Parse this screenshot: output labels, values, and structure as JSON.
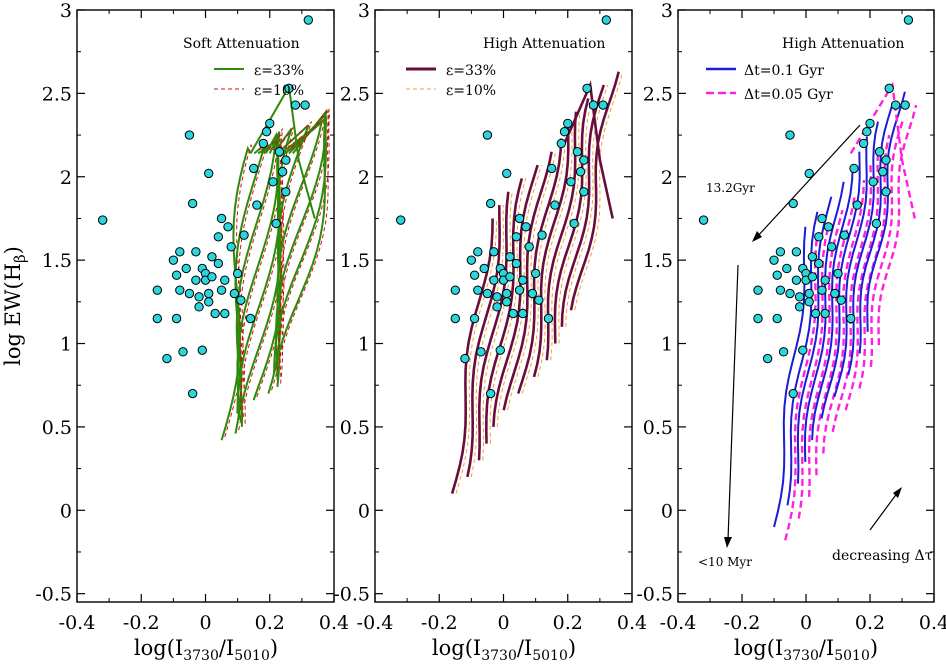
{
  "figure": {
    "ylabel_main": "log EW(H",
    "ylabel_sub": "β",
    "xlabel_main": "log(I",
    "xlabel_sub1": "3730",
    "xlabel_mid": "/I",
    "xlabel_sub2": "5010"
  },
  "colors": {
    "green": "#2d8a0a",
    "red_dash": "#cc1111",
    "maroon": "#6a0d3c",
    "orange_dash": "#f0a030",
    "blue": "#1b1bd8",
    "magenta_dash": "#ff22dd",
    "points": "#2ad6dc"
  },
  "chart_data": [
    {
      "type": "line",
      "title": "Soft Attenuation",
      "xlabel": "log(I3730/I5010)",
      "ylabel": "log EW(Hβ)",
      "xlim": [
        -0.4,
        0.4
      ],
      "ylim": [
        -0.55,
        3.0
      ],
      "xticks": [
        "-0.4",
        "-0.2",
        "0",
        "0.2",
        "0.4"
      ],
      "yticks": [
        "-0.5",
        "0",
        "0.5",
        "1",
        "1.5",
        "2",
        "2.5",
        "3"
      ],
      "legend": [
        "ε=33%",
        "ε=10%"
      ],
      "legend_position": "top-right",
      "series": [
        {
          "name": "ε=33%",
          "style": "solid",
          "color": "green",
          "track_count": 12,
          "note": "model tracks"
        },
        {
          "name": "ε=10%",
          "style": "dashed",
          "color": "red",
          "track_count": 12,
          "note": "model tracks"
        }
      ]
    },
    {
      "type": "line",
      "title": "High Attenuation",
      "xlabel": "log(I3730/I5010)",
      "ylabel": "log EW(Hβ)",
      "xlim": [
        -0.4,
        0.4
      ],
      "ylim": [
        -0.55,
        3.0
      ],
      "xticks": [
        "-0.4",
        "-0.2",
        "0",
        "0.2",
        "0.4"
      ],
      "yticks": [
        "-0.5",
        "0",
        "0.5",
        "1",
        "1.5",
        "2",
        "2.5",
        "3"
      ],
      "legend": [
        "ε=33%",
        "ε=10%"
      ],
      "legend_position": "top-right",
      "series": [
        {
          "name": "ε=33%",
          "style": "solid",
          "color": "maroon",
          "track_count": 12
        },
        {
          "name": "ε=10%",
          "style": "dashed",
          "color": "orange",
          "track_count": 12
        }
      ]
    },
    {
      "type": "line",
      "title": "High Attenuation",
      "xlabel": "log(I3730/I5010)",
      "ylabel": "log EW(Hβ)",
      "xlim": [
        -0.4,
        0.4
      ],
      "ylim": [
        -0.55,
        3.0
      ],
      "xticks": [
        "-0.4",
        "-0.2",
        "0",
        "0.2",
        "0.4"
      ],
      "yticks": [
        "-0.5",
        "0",
        "0.5",
        "1",
        "1.5",
        "2",
        "2.5",
        "3"
      ],
      "legend": [
        "Δt=0.1 Gyr",
        "Δt=0.05 Gyr"
      ],
      "legend_position": "top-right",
      "annotations": [
        "13.2Gyr",
        "<10 Myr",
        "decreasing Δτ"
      ],
      "series": [
        {
          "name": "Δt=0.1 Gyr",
          "style": "solid",
          "color": "blue",
          "track_count": 10
        },
        {
          "name": "Δt=0.05 Gyr",
          "style": "dashed",
          "color": "magenta",
          "track_count": 10
        }
      ]
    }
  ],
  "observed_points": [
    [
      -0.32,
      1.74
    ],
    [
      -0.15,
      1.32
    ],
    [
      -0.15,
      1.15
    ],
    [
      -0.12,
      0.91
    ],
    [
      -0.1,
      1.5
    ],
    [
      -0.09,
      1.41
    ],
    [
      -0.09,
      1.15
    ],
    [
      -0.08,
      1.55
    ],
    [
      -0.08,
      1.32
    ],
    [
      -0.07,
      0.95
    ],
    [
      -0.06,
      1.45
    ],
    [
      -0.05,
      1.3
    ],
    [
      -0.05,
      2.25
    ],
    [
      -0.04,
      1.84
    ],
    [
      -0.04,
      0.7
    ],
    [
      -0.03,
      1.38
    ],
    [
      -0.03,
      1.55
    ],
    [
      -0.02,
      1.22
    ],
    [
      -0.02,
      1.28
    ],
    [
      -0.01,
      1.45
    ],
    [
      -0.01,
      0.96
    ],
    [
      0.0,
      1.42
    ],
    [
      0.0,
      1.38
    ],
    [
      0.01,
      2.02
    ],
    [
      0.01,
      1.3
    ],
    [
      0.01,
      1.25
    ],
    [
      0.02,
      1.4
    ],
    [
      0.02,
      1.52
    ],
    [
      0.03,
      1.18
    ],
    [
      0.04,
      1.48
    ],
    [
      0.04,
      1.64
    ],
    [
      0.05,
      1.75
    ],
    [
      0.05,
      1.32
    ],
    [
      0.06,
      1.18
    ],
    [
      0.06,
      1.38
    ],
    [
      0.07,
      1.7
    ],
    [
      0.08,
      1.58
    ],
    [
      0.09,
      1.3
    ],
    [
      0.1,
      1.42
    ],
    [
      0.11,
      1.26
    ],
    [
      0.12,
      1.65
    ],
    [
      0.14,
      1.15
    ],
    [
      0.15,
      2.05
    ],
    [
      0.16,
      1.83
    ],
    [
      0.18,
      2.2
    ],
    [
      0.19,
      2.27
    ],
    [
      0.2,
      2.32
    ],
    [
      0.21,
      1.97
    ],
    [
      0.22,
      1.72
    ],
    [
      0.23,
      2.15
    ],
    [
      0.24,
      2.03
    ],
    [
      0.25,
      1.91
    ],
    [
      0.25,
      2.1
    ],
    [
      0.26,
      2.53
    ],
    [
      0.28,
      2.43
    ],
    [
      0.31,
      2.43
    ],
    [
      0.32,
      2.94
    ]
  ]
}
